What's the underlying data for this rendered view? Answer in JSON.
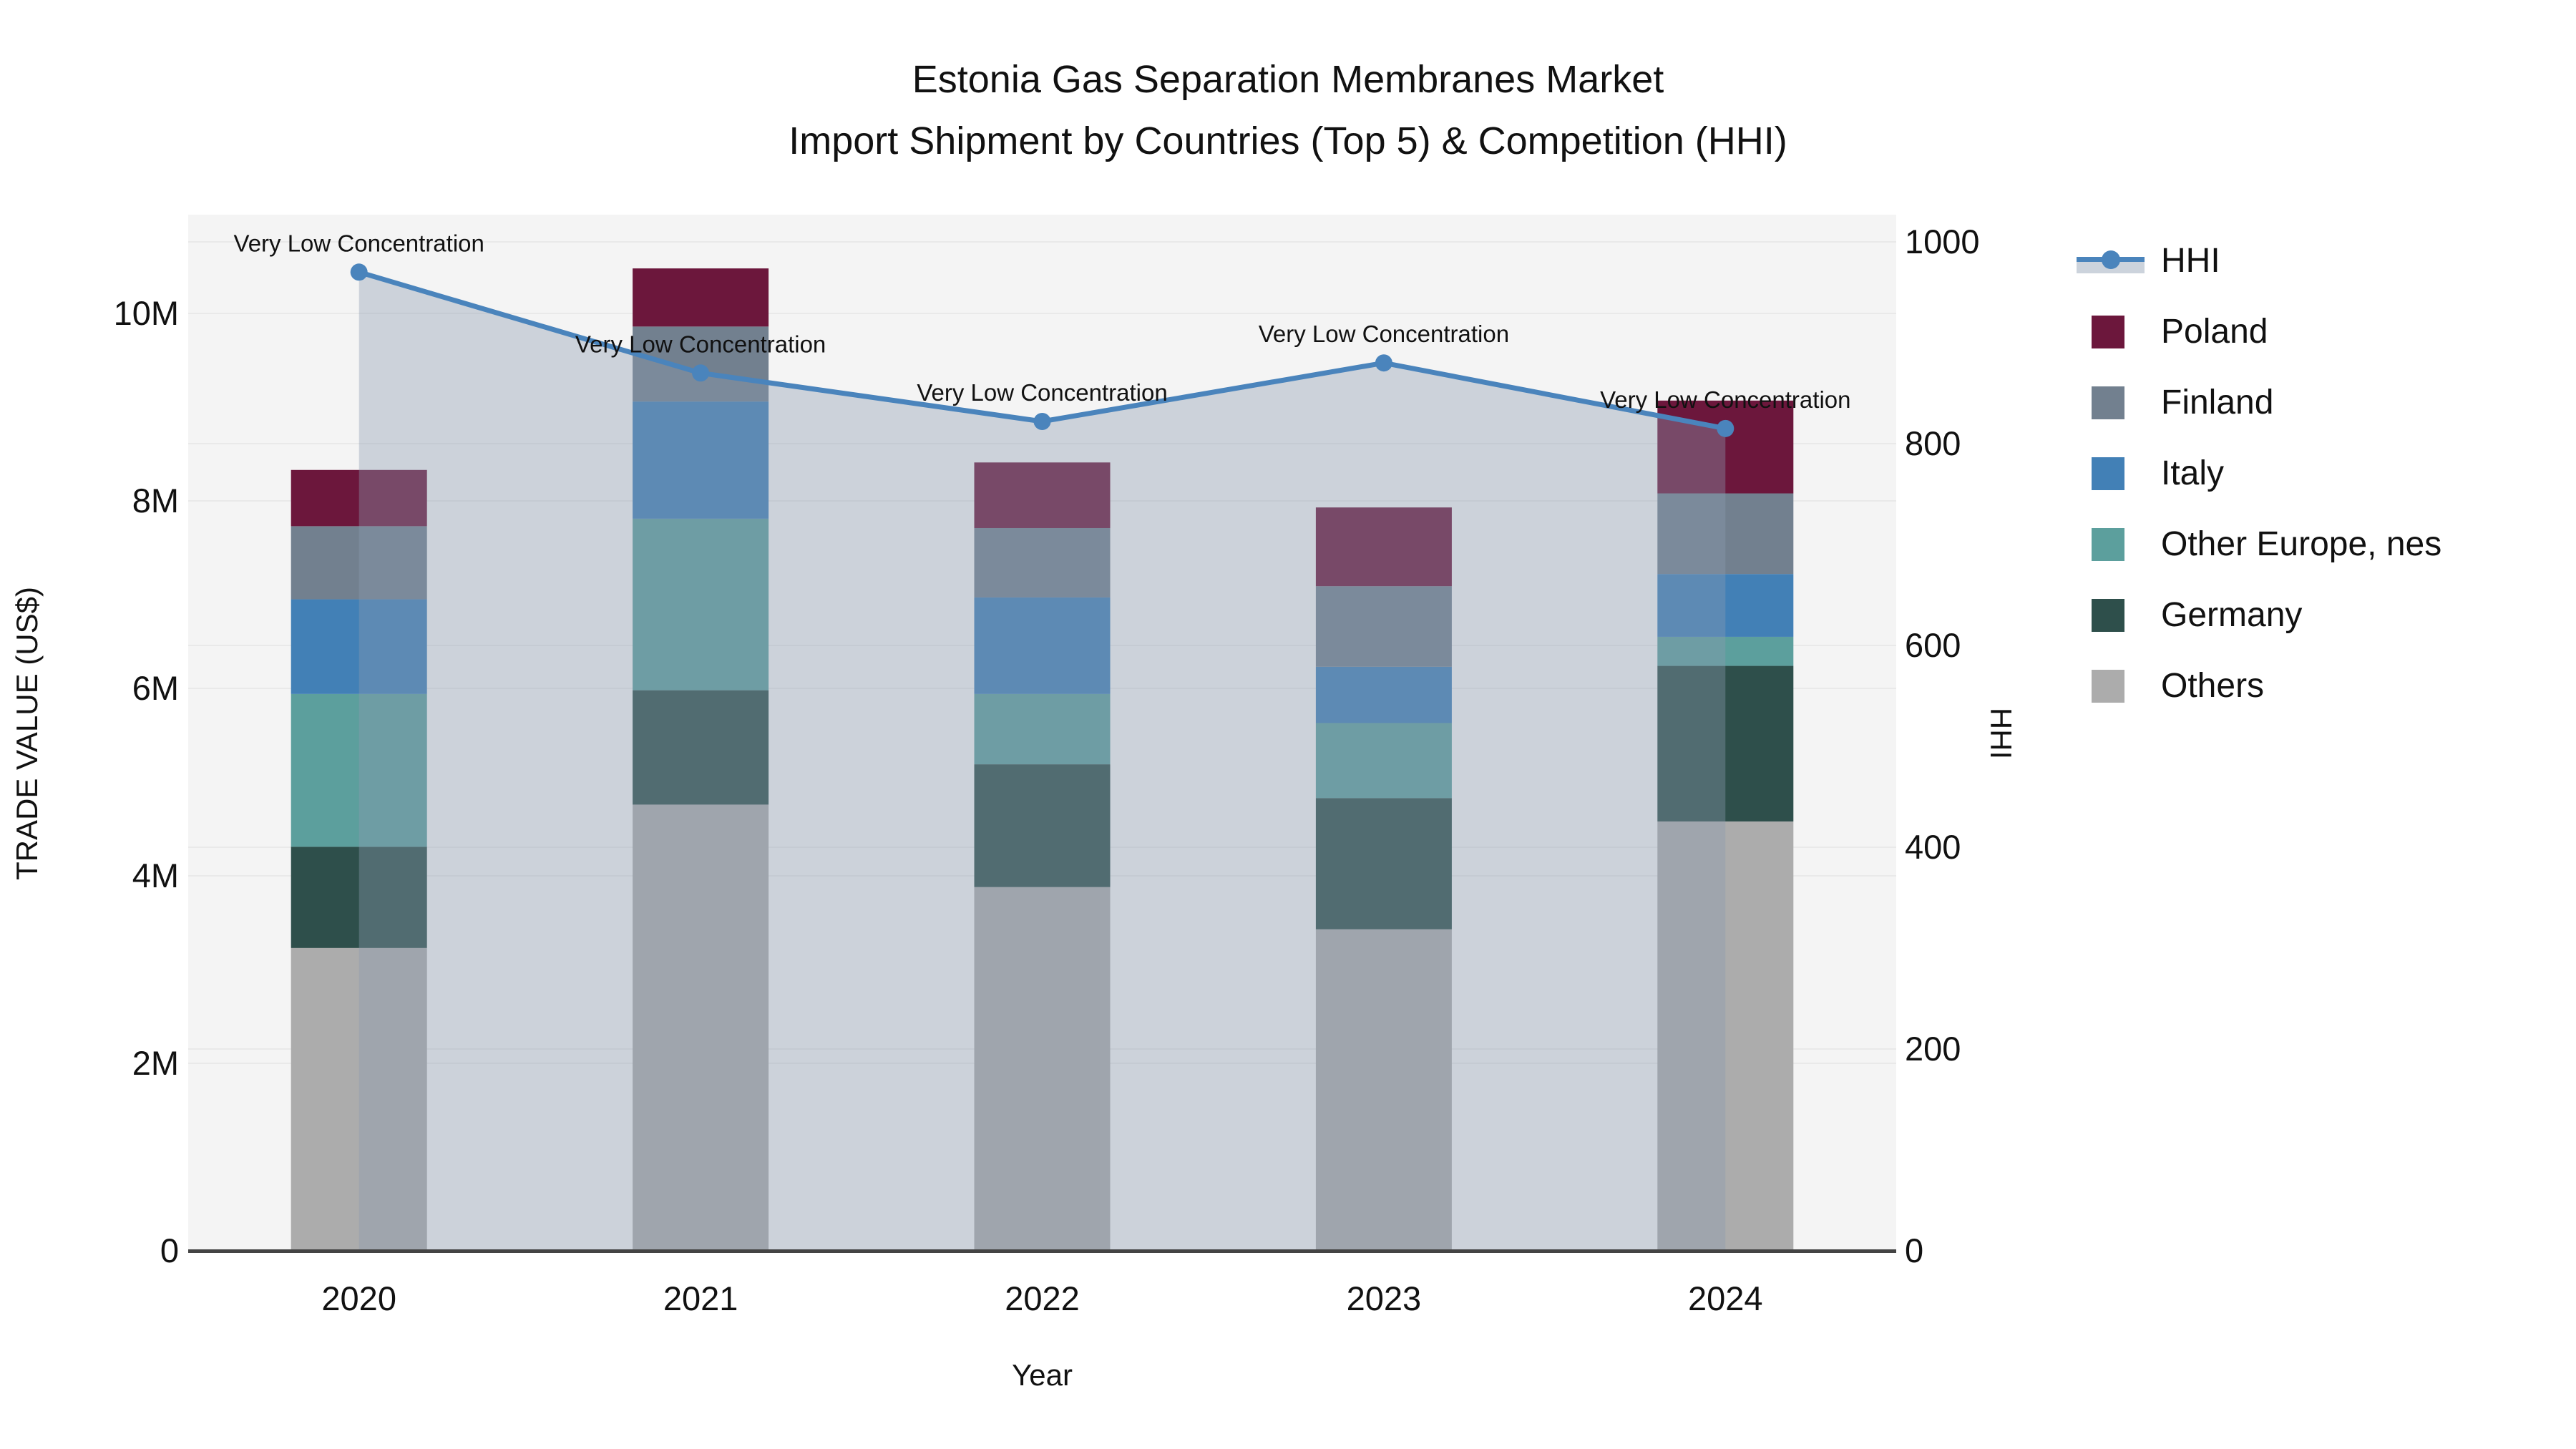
{
  "figure": {
    "title_line1": "Estonia Gas Separation Membranes Market",
    "title_line2": "Import Shipment by Countries (Top 5) & Competition (HHI)"
  },
  "chart_data": {
    "type": "bar",
    "variant": "stacked-bars-with-line-overlay",
    "title": "Estonia Gas Separation Membranes Market — Import Shipment by Countries (Top 5) & Competition (HHI)",
    "categories": [
      "2020",
      "2021",
      "2022",
      "2023",
      "2024"
    ],
    "xlabel": "Year",
    "left_axis": {
      "label": "TRADE VALUE (US$)",
      "units": "millions of US$",
      "tick_values_musd": [
        0,
        2,
        4,
        6,
        8,
        10
      ],
      "tick_labels": [
        "0",
        "2M",
        "4M",
        "6M",
        "8M",
        "10M"
      ],
      "range_musd": [
        0,
        11.05
      ],
      "grid": true
    },
    "right_axis": {
      "label": "HHI",
      "tick_values": [
        0,
        200,
        400,
        600,
        800,
        1000
      ],
      "tick_labels": [
        "0",
        "200",
        "400",
        "600",
        "800",
        "1000"
      ],
      "range": [
        0,
        1028
      ],
      "grid": true
    },
    "bar_series": [
      {
        "name": "Others",
        "color": "#ACACAC",
        "values_musd": [
          3.23,
          4.76,
          3.88,
          3.43,
          4.58
        ]
      },
      {
        "name": "Germany",
        "color": "#2E4F4B",
        "values_musd": [
          1.08,
          1.22,
          1.31,
          1.4,
          1.66
        ]
      },
      {
        "name": "Other Europe, nes",
        "color": "#5C9F9D",
        "values_musd": [
          1.63,
          1.83,
          0.75,
          0.8,
          0.31
        ]
      },
      {
        "name": "Italy",
        "color": "#4280B6",
        "values_musd": [
          1.01,
          1.25,
          1.03,
          0.6,
          0.67
        ]
      },
      {
        "name": "Finland",
        "color": "#72808F",
        "values_musd": [
          0.78,
          0.8,
          0.74,
          0.86,
          0.86
        ]
      },
      {
        "name": "Poland",
        "color": "#6C173C",
        "values_musd": [
          0.6,
          0.62,
          0.7,
          0.84,
          0.99
        ]
      }
    ],
    "stack_totals_musd": [
      8.33,
      10.48,
      8.41,
      7.93,
      9.07
    ],
    "hhi_line": {
      "name": "HHI",
      "values": [
        970,
        870,
        822,
        880,
        815
      ],
      "line_color": "#4A84BC",
      "marker_color": "#4A84BC",
      "area_fill": "rgba(139,155,176,0.38)",
      "annotations": [
        "Very Low Concentration",
        "Very Low Concentration",
        "Very Low Concentration",
        "Very Low Concentration",
        "Very Low Concentration"
      ]
    },
    "legend": [
      {
        "label": "HHI",
        "type": "line",
        "color": "#4A84BC"
      },
      {
        "label": "Poland",
        "type": "square",
        "color": "#6C173C"
      },
      {
        "label": "Finland",
        "type": "square",
        "color": "#72808F"
      },
      {
        "label": "Italy",
        "type": "square",
        "color": "#4280B6"
      },
      {
        "label": "Other Europe, nes",
        "type": "square",
        "color": "#5C9F9D"
      },
      {
        "label": "Germany",
        "type": "square",
        "color": "#2E4F4B"
      },
      {
        "label": "Others",
        "type": "square",
        "color": "#ACACAC"
      }
    ],
    "legend_position": "right",
    "plot_bg": "#F4F4F4",
    "grid_color": "#E9E9E9",
    "zeroline_color": "#444444",
    "text_color": "#111111"
  }
}
